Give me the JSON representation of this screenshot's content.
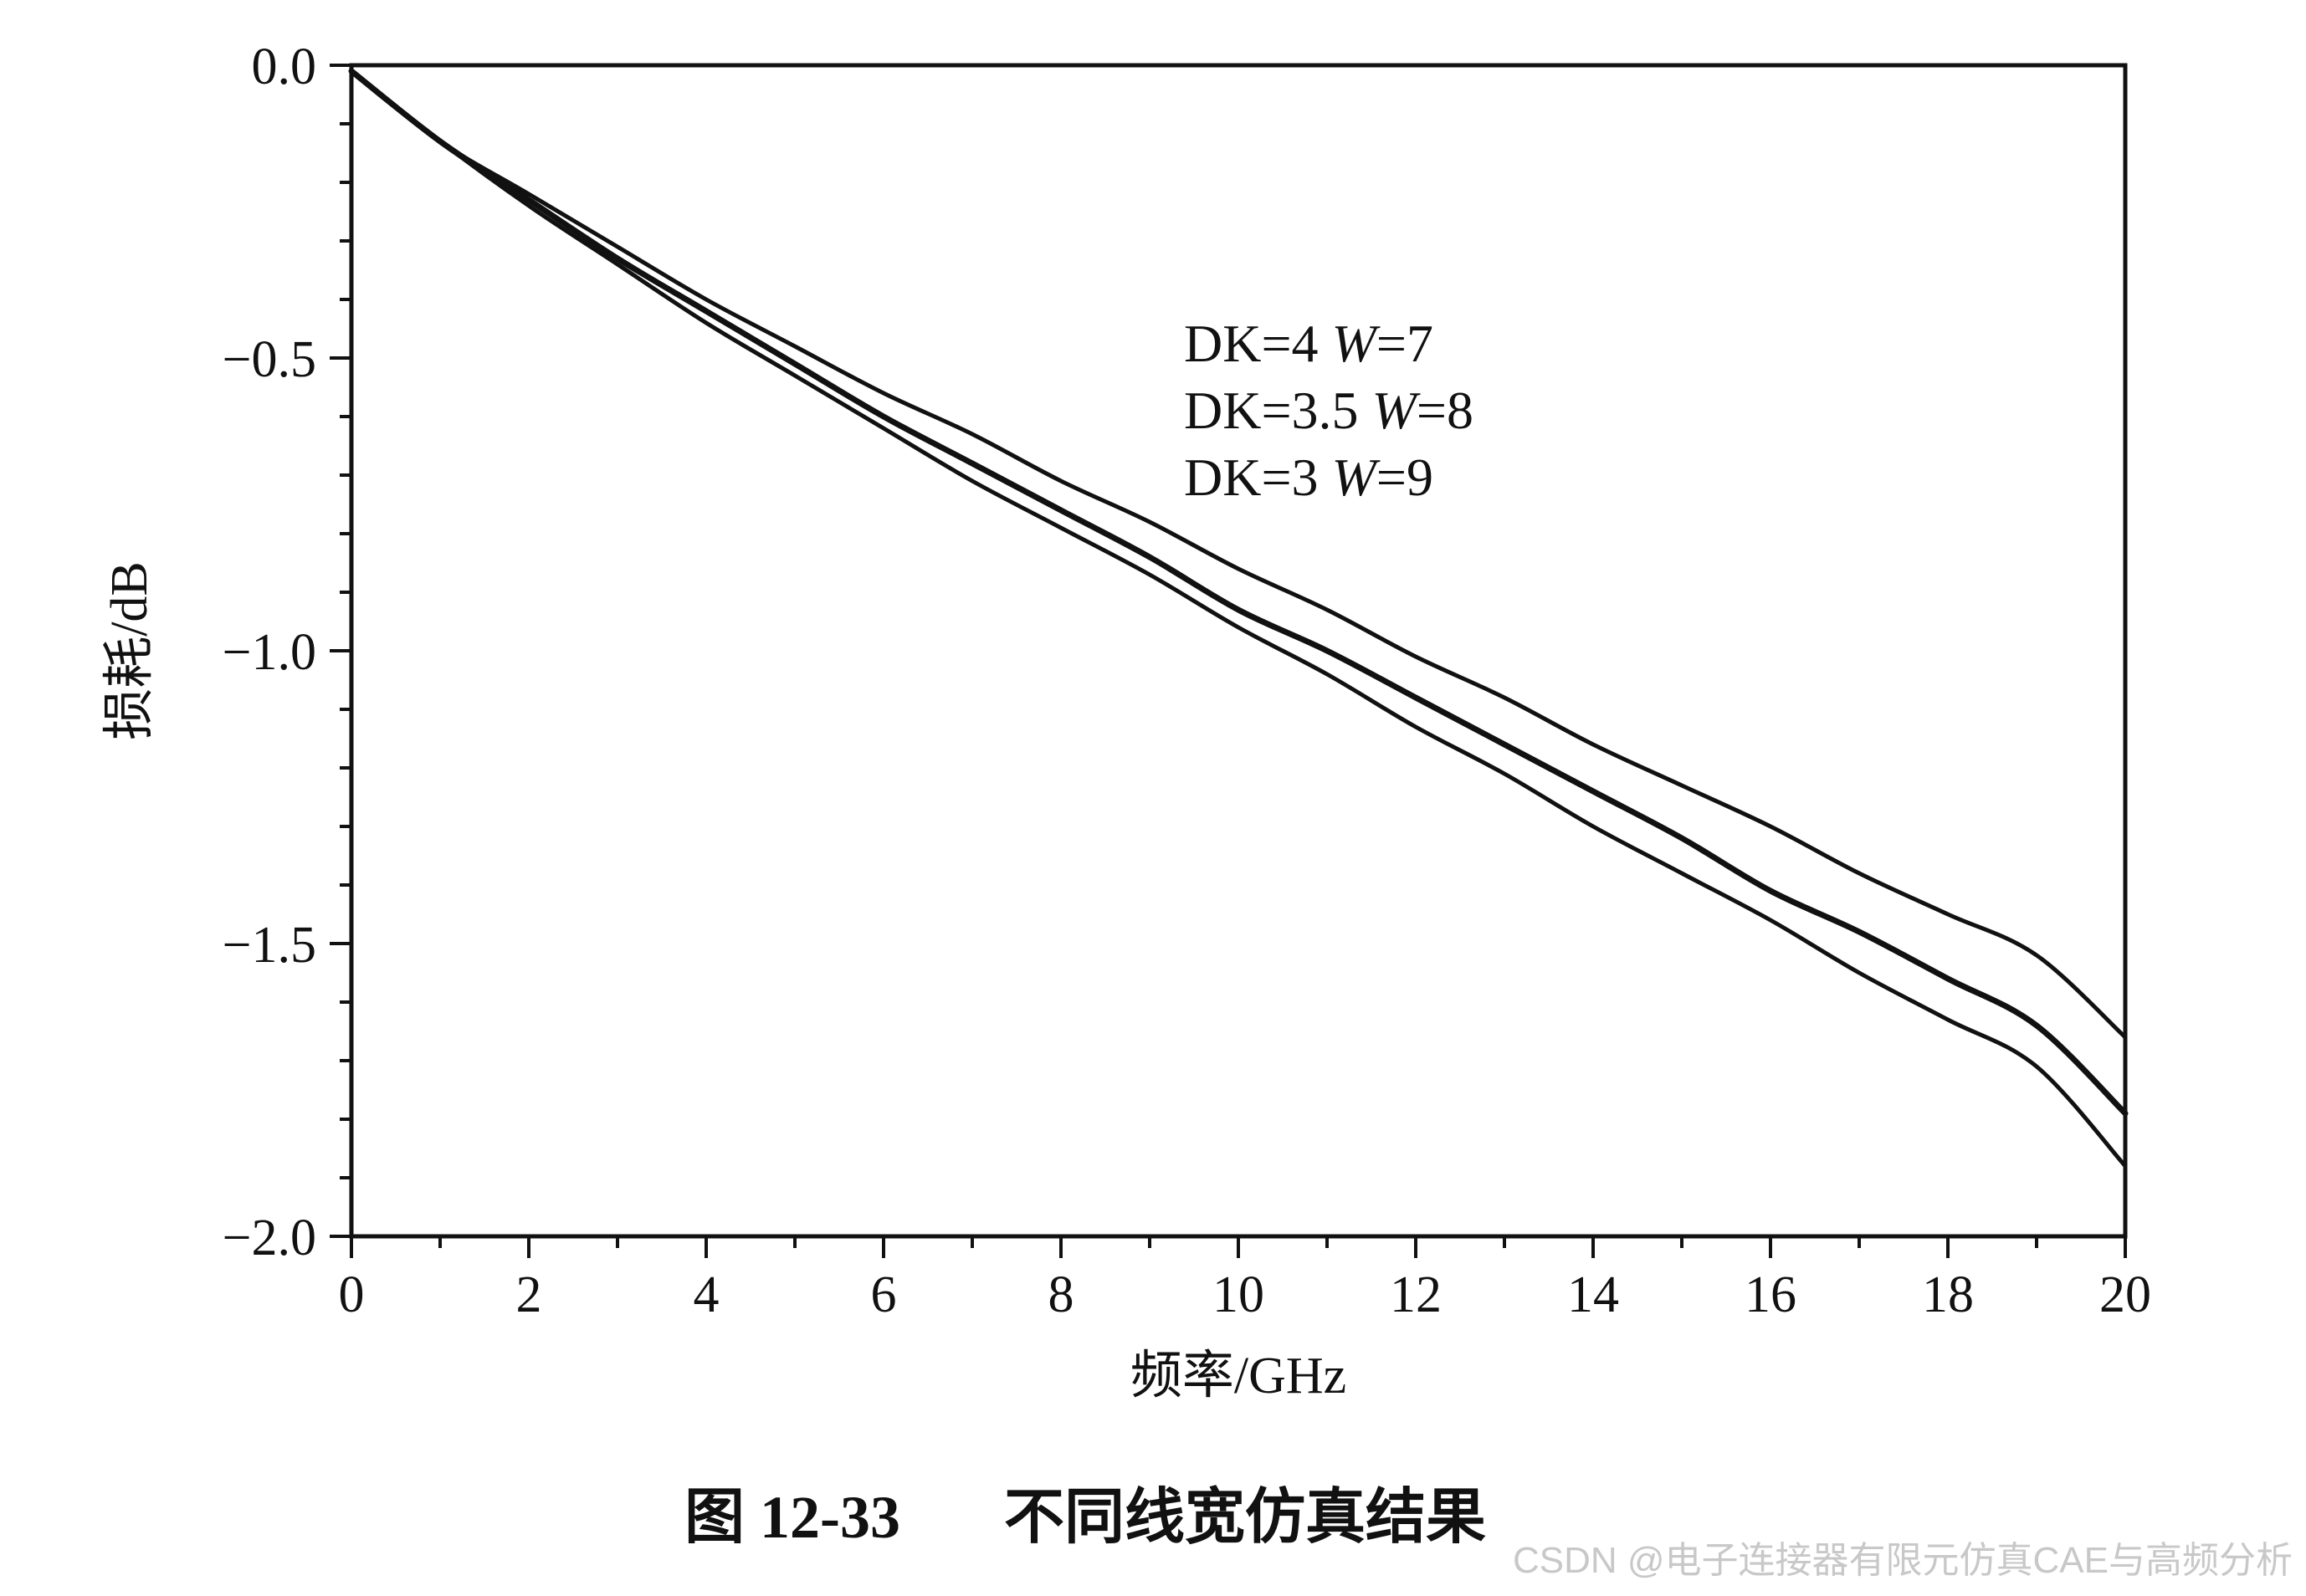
{
  "chart_data": {
    "type": "line",
    "xlabel": "频率/GHz",
    "ylabel": "损耗/dB",
    "xlim": [
      0,
      20
    ],
    "ylim": [
      -2.0,
      0.0
    ],
    "x_ticks": [
      0,
      2,
      4,
      6,
      8,
      10,
      12,
      14,
      16,
      18,
      20
    ],
    "x_tick_labels": [
      "0",
      "2",
      "4",
      "6",
      "8",
      "10",
      "12",
      "14",
      "16",
      "18",
      "20"
    ],
    "y_ticks": [
      0.0,
      -0.5,
      -1.0,
      -1.5,
      -2.0
    ],
    "y_tick_labels": [
      "0.0",
      "−0.5",
      "−1.0",
      "−1.5",
      "−2.0"
    ],
    "grid": false,
    "legend_position": "upper-center",
    "x": [
      0,
      1,
      2,
      3,
      4,
      5,
      6,
      7,
      8,
      9,
      10,
      11,
      12,
      13,
      14,
      15,
      16,
      17,
      18,
      19,
      20
    ],
    "series": [
      {
        "name": "DK=4 W=7",
        "values": [
          -0.01,
          -0.13,
          -0.22,
          -0.31,
          -0.4,
          -0.48,
          -0.56,
          -0.63,
          -0.71,
          -0.78,
          -0.86,
          -0.93,
          -1.01,
          -1.08,
          -1.16,
          -1.23,
          -1.3,
          -1.38,
          -1.45,
          -1.52,
          -1.66
        ]
      },
      {
        "name": "DK=3.5 W=8",
        "values": [
          -0.01,
          -0.13,
          -0.23,
          -0.33,
          -0.42,
          -0.51,
          -0.6,
          -0.68,
          -0.76,
          -0.84,
          -0.93,
          -1.0,
          -1.08,
          -1.16,
          -1.24,
          -1.32,
          -1.41,
          -1.48,
          -1.56,
          -1.64,
          -1.79
        ]
      },
      {
        "name": "DK=3 W=9",
        "values": [
          -0.01,
          -0.13,
          -0.24,
          -0.34,
          -0.44,
          -0.53,
          -0.62,
          -0.71,
          -0.79,
          -0.87,
          -0.96,
          -1.04,
          -1.13,
          -1.21,
          -1.3,
          -1.38,
          -1.46,
          -1.55,
          -1.63,
          -1.71,
          -1.88
        ]
      }
    ],
    "legend_entries": [
      {
        "dk": "DK=4",
        "w_symbol": "W",
        "w_value": "=7"
      },
      {
        "dk": "DK=3.5",
        "w_symbol": "W",
        "w_value": "=8"
      },
      {
        "dk": "DK=3",
        "w_symbol": "W",
        "w_value": "=9"
      }
    ],
    "line_color": "#111111"
  },
  "caption": {
    "figure_number": "图 12-33",
    "title": "不同线宽仿真结果"
  },
  "watermark": "CSDN @电子连接器有限元仿真CAE与高频分析"
}
